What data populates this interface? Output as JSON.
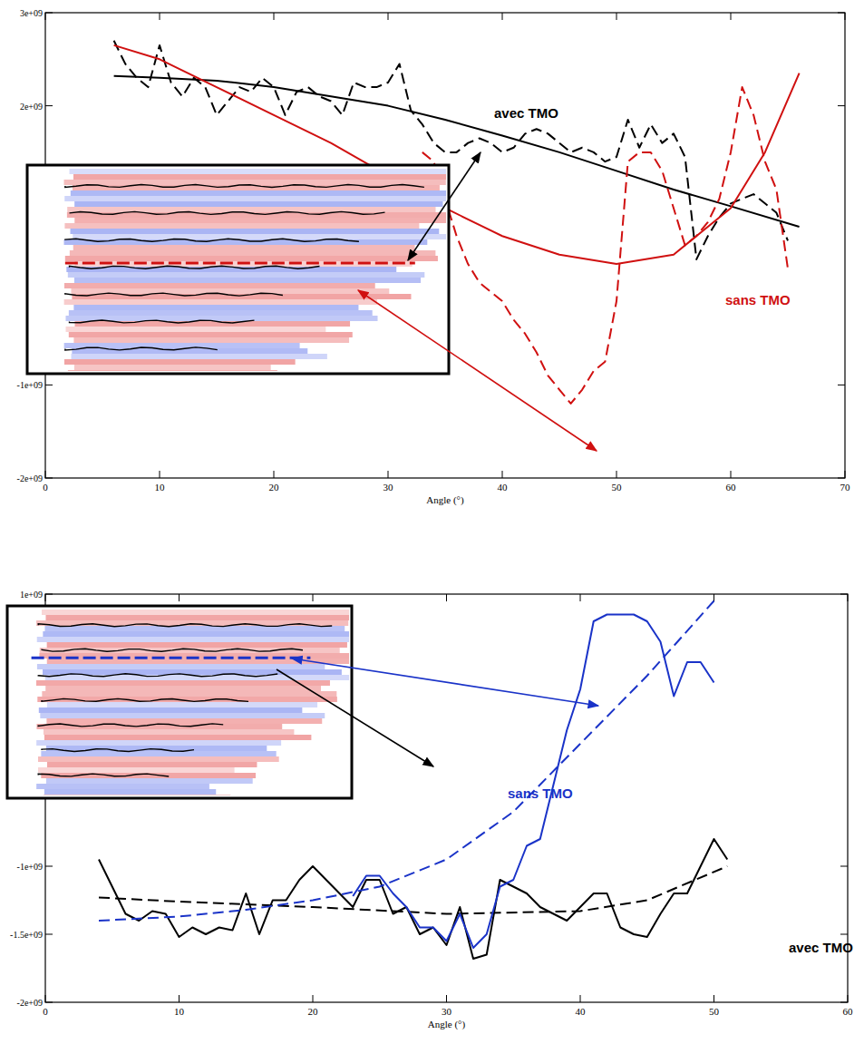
{
  "chart_data": [
    {
      "type": "line",
      "x_label": "Angle (°)",
      "xlim": [
        0,
        70
      ],
      "xticks": [
        0,
        10,
        20,
        30,
        40,
        50,
        60,
        70
      ],
      "ylim": [
        -2000000000.0,
        3000000000.0
      ],
      "yticks": [
        {
          "value": -2000000000.0,
          "label": "-2e+09"
        },
        {
          "value": -1000000000.0,
          "label": "-1e+09"
        },
        {
          "value": 2000000000.0,
          "label": "2e+09"
        },
        {
          "value": 3000000000.0,
          "label": "3e+09"
        }
      ],
      "grid": false,
      "annotations": [
        {
          "text": "avec TMO",
          "color": "#000000"
        },
        {
          "text": "sans TMO",
          "color": "#d01010"
        }
      ],
      "series": [
        {
          "color": "#000000",
          "line_style": "dashed",
          "x": [
            6,
            7,
            8,
            9,
            10,
            11,
            12,
            13,
            14,
            15,
            16,
            17,
            18,
            19,
            20,
            21,
            22,
            23,
            24,
            25,
            26,
            27,
            28,
            29,
            30,
            31,
            32,
            33,
            34,
            35,
            36,
            37,
            38,
            39,
            40,
            41,
            42,
            43,
            44,
            45,
            46,
            47,
            48,
            49,
            50,
            51,
            52,
            53,
            54,
            55,
            56,
            57,
            58,
            59,
            60,
            61,
            62,
            63,
            64,
            65
          ],
          "values": [
            2700000000.0,
            2450000000.0,
            2300000000.0,
            2200000000.0,
            2650000000.0,
            2250000000.0,
            2100000000.0,
            2300000000.0,
            2200000000.0,
            1900000000.0,
            2050000000.0,
            2200000000.0,
            2150000000.0,
            2300000000.0,
            2200000000.0,
            1900000000.0,
            2150000000.0,
            2200000000.0,
            2100000000.0,
            2050000000.0,
            1900000000.0,
            2250000000.0,
            2200000000.0,
            2200000000.0,
            2250000000.0,
            2450000000.0,
            1950000000.0,
            1800000000.0,
            1600000000.0,
            1500000000.0,
            1500000000.0,
            1600000000.0,
            1650000000.0,
            1600000000.0,
            1500000000.0,
            1550000000.0,
            1700000000.0,
            1750000000.0,
            1700000000.0,
            1600000000.0,
            1500000000.0,
            1550000000.0,
            1500000000.0,
            1400000000.0,
            1450000000.0,
            1850000000.0,
            1550000000.0,
            1800000000.0,
            1600000000.0,
            1700000000.0,
            1450000000.0,
            350000000.0,
            600000000.0,
            800000000.0,
            950000000.0,
            1000000000.0,
            1050000000.0,
            950000000.0,
            850000000.0,
            550000000.0
          ]
        },
        {
          "color": "#000000",
          "line_style": "solid",
          "x": [
            6,
            10,
            15,
            20,
            25,
            30,
            35,
            40,
            45,
            50,
            55,
            60,
            66
          ],
          "values": [
            2320000000.0,
            2300000000.0,
            2270000000.0,
            2200000000.0,
            2100000000.0,
            2000000000.0,
            1850000000.0,
            1680000000.0,
            1500000000.0,
            1300000000.0,
            1100000000.0,
            920000000.0,
            700000000.0
          ]
        },
        {
          "color": "#d01010",
          "line_style": "dashed",
          "x": [
            33,
            34,
            35,
            36,
            37,
            38,
            39,
            40,
            41,
            42,
            43,
            44,
            45,
            46,
            47,
            48,
            49,
            50,
            51,
            52,
            53,
            54,
            55,
            56,
            57,
            58,
            59,
            60,
            61,
            62,
            63,
            64,
            65
          ],
          "values": [
            1500000000.0,
            1400000000.0,
            1000000000.0,
            600000000.0,
            300000000.0,
            100000000.0,
            0.0,
            -100000000.0,
            -300000000.0,
            -450000000.0,
            -650000000.0,
            -900000000.0,
            -1050000000.0,
            -1200000000.0,
            -1050000000.0,
            -850000000.0,
            -750000000.0,
            -100000000.0,
            1400000000.0,
            1500000000.0,
            1500000000.0,
            1300000000.0,
            900000000.0,
            500000000.0,
            600000000.0,
            750000000.0,
            1000000000.0,
            1500000000.0,
            2200000000.0,
            1900000000.0,
            1400000000.0,
            1100000000.0,
            250000000.0
          ]
        },
        {
          "color": "#d01010",
          "line_style": "solid",
          "x": [
            6,
            10,
            15,
            20,
            25,
            30,
            35,
            40,
            45,
            50,
            55,
            60,
            63,
            66
          ],
          "values": [
            2650000000.0,
            2500000000.0,
            2200000000.0,
            1900000000.0,
            1600000000.0,
            1250000000.0,
            900000000.0,
            600000000.0,
            400000000.0,
            300000000.0,
            400000000.0,
            900000000.0,
            1500000000.0,
            2350000000.0
          ]
        }
      ]
    },
    {
      "type": "line",
      "x_label": "Angle (°)",
      "xlim": [
        0,
        60
      ],
      "xticks": [
        0,
        10,
        20,
        30,
        40,
        50,
        60
      ],
      "ylim": [
        -2000000000.0,
        1000000000.0
      ],
      "yticks": [
        {
          "value": -2000000000.0,
          "label": "-2e+09"
        },
        {
          "value": -1500000000.0,
          "label": "-1.5e+09"
        },
        {
          "value": -1000000000.0,
          "label": "-1e+09"
        },
        {
          "value": 1000000000.0,
          "label": "1e+09"
        }
      ],
      "grid": false,
      "annotations": [
        {
          "text": "sans TMO",
          "color": "#1a33c8"
        },
        {
          "text": "avec TMO",
          "color": "#000000"
        }
      ],
      "series": [
        {
          "color": "#000000",
          "line_style": "solid",
          "x": [
            4,
            5,
            6,
            7,
            8,
            9,
            10,
            11,
            12,
            13,
            14,
            15,
            16,
            17,
            18,
            19,
            20,
            21,
            22,
            23,
            24,
            25,
            26,
            27,
            28,
            29,
            30,
            31,
            32,
            33,
            34,
            35,
            36,
            37,
            38,
            39,
            40,
            41,
            42,
            43,
            44,
            45,
            46,
            47,
            48,
            49,
            50,
            51
          ],
          "values": [
            -950000000.0,
            -1150000000.0,
            -1350000000.0,
            -1400000000.0,
            -1330000000.0,
            -1350000000.0,
            -1520000000.0,
            -1450000000.0,
            -1500000000.0,
            -1450000000.0,
            -1470000000.0,
            -1200000000.0,
            -1500000000.0,
            -1250000000.0,
            -1250000000.0,
            -1100000000.0,
            -1000000000.0,
            -1100000000.0,
            -1200000000.0,
            -1300000000.0,
            -1100000000.0,
            -1100000000.0,
            -1350000000.0,
            -1300000000.0,
            -1500000000.0,
            -1450000000.0,
            -1580000000.0,
            -1300000000.0,
            -1680000000.0,
            -1650000000.0,
            -1100000000.0,
            -1150000000.0,
            -1200000000.0,
            -1300000000.0,
            -1350000000.0,
            -1400000000.0,
            -1300000000.0,
            -1200000000.0,
            -1200000000.0,
            -1450000000.0,
            -1500000000.0,
            -1520000000.0,
            -1350000000.0,
            -1200000000.0,
            -1200000000.0,
            -1000000000.0,
            -800000000.0,
            -950000000.0
          ]
        },
        {
          "color": "#000000",
          "line_style": "dashed",
          "x": [
            4,
            10,
            20,
            30,
            40,
            45,
            51
          ],
          "values": [
            -1230000000.0,
            -1260000000.0,
            -1300000000.0,
            -1350000000.0,
            -1330000000.0,
            -1250000000.0,
            -1000000000.0
          ]
        },
        {
          "color": "#1a33c8",
          "line_style": "solid",
          "x": [
            23,
            24,
            25,
            26,
            27,
            28,
            29,
            30,
            31,
            32,
            33,
            34,
            35,
            36,
            37,
            38,
            39,
            40,
            41,
            42,
            43,
            44,
            45,
            46,
            47,
            48,
            49,
            50
          ],
          "values": [
            -1220000000.0,
            -1070000000.0,
            -1070000000.0,
            -1200000000.0,
            -1300000000.0,
            -1450000000.0,
            -1450000000.0,
            -1550000000.0,
            -1350000000.0,
            -1600000000.0,
            -1500000000.0,
            -1150000000.0,
            -1100000000.0,
            -850000000.0,
            -800000000.0,
            -400000000.0,
            0.0,
            300000000.0,
            800000000.0,
            850000000.0,
            850000000.0,
            850000000.0,
            800000000.0,
            650000000.0,
            250000000.0,
            500000000.0,
            500000000.0,
            350000000.0
          ]
        },
        {
          "color": "#1a33c8",
          "line_style": "dashed",
          "x": [
            4,
            10,
            15,
            20,
            25,
            30,
            35,
            40,
            45,
            50
          ],
          "values": [
            -1400000000.0,
            -1370000000.0,
            -1320000000.0,
            -1250000000.0,
            -1150000000.0,
            -950000000.0,
            -600000000.0,
            -100000000.0,
            400000000.0,
            950000000.0
          ]
        }
      ]
    }
  ]
}
